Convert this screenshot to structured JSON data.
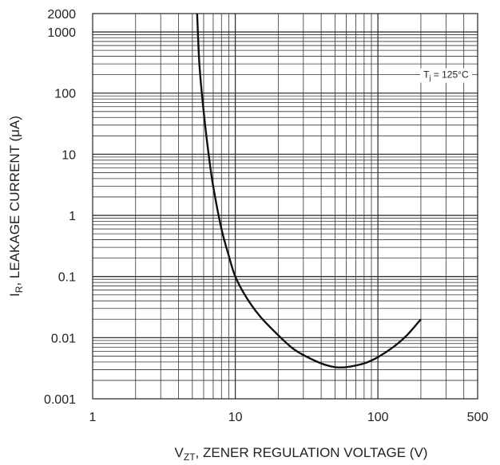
{
  "chart_data": {
    "type": "line",
    "title": "",
    "xlabel": {
      "main": "V",
      "sub": "ZT",
      "rest": ", ZENER REGULATION VOLTAGE (V)"
    },
    "ylabel": {
      "main": "I",
      "sub": "R",
      "rest": ", LEAKAGE CURRENT (μA)"
    },
    "x_scale": "log",
    "y_scale": "log",
    "xlim": [
      1,
      500
    ],
    "ylim": [
      0.001,
      2000
    ],
    "x_ticks": [
      {
        "value": 1,
        "label": "1"
      },
      {
        "value": 10,
        "label": "10"
      },
      {
        "value": 100,
        "label": "100"
      },
      {
        "value": 500,
        "label": "500"
      }
    ],
    "y_ticks": [
      {
        "value": 0.001,
        "label": "0.001"
      },
      {
        "value": 0.01,
        "label": "0.01"
      },
      {
        "value": 0.1,
        "label": "0.1"
      },
      {
        "value": 1,
        "label": "1"
      },
      {
        "value": 10,
        "label": "10"
      },
      {
        "value": 100,
        "label": "100"
      },
      {
        "value": 1000,
        "label": "1000"
      },
      {
        "value": 2000,
        "label": "2000"
      }
    ],
    "grid": true,
    "annotation": {
      "main": "T",
      "sub": "j",
      "rest": " = 125°C",
      "x": 300,
      "y": 200
    },
    "series": [
      {
        "name": "",
        "color": "#111111",
        "x": [
          5.4,
          5.6,
          6,
          6.5,
          7,
          8,
          9,
          10,
          12,
          15,
          20,
          25,
          30,
          40,
          50,
          60,
          80,
          100,
          130,
          160,
          200
        ],
        "y": [
          2000,
          300,
          50,
          10,
          3,
          0.6,
          0.22,
          0.1,
          0.045,
          0.022,
          0.011,
          0.0068,
          0.0052,
          0.0038,
          0.0033,
          0.0033,
          0.0038,
          0.0048,
          0.0072,
          0.011,
          0.02
        ]
      }
    ]
  }
}
